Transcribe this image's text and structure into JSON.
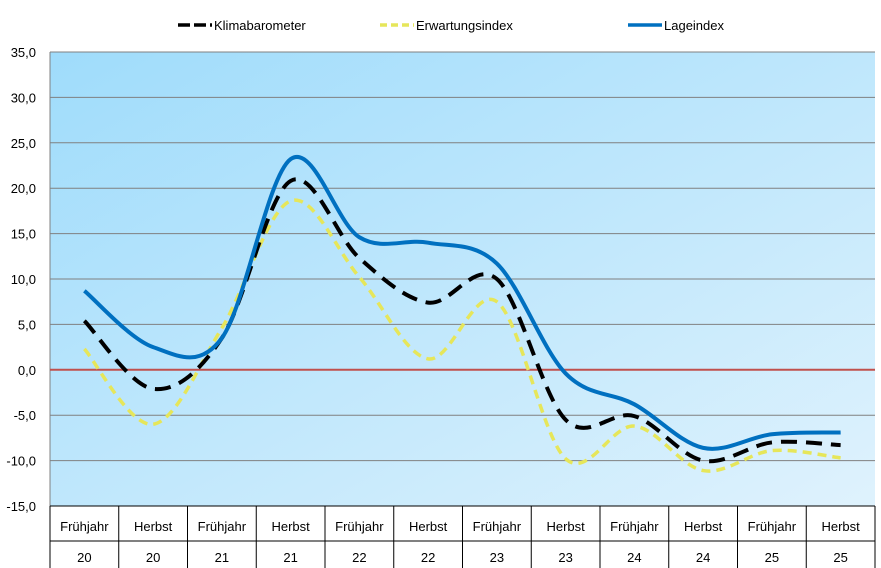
{
  "chart_data": {
    "type": "line",
    "title": "",
    "xlabel": "",
    "ylabel": "",
    "ylim": [
      -15,
      35
    ],
    "yticks": [
      "35,0",
      "30,0",
      "25,0",
      "20,0",
      "15,0",
      "10,0",
      "5,0",
      "0,0",
      "-5,0",
      "-10,0",
      "-15,0"
    ],
    "ytick_values": [
      35,
      30,
      25,
      20,
      15,
      10,
      5,
      0,
      -5,
      -10,
      -15
    ],
    "grid": true,
    "legend": "top",
    "categories": [
      [
        "Frühjahr",
        "20"
      ],
      [
        "Herbst",
        "20"
      ],
      [
        "Frühjahr",
        "21"
      ],
      [
        "Herbst",
        "21"
      ],
      [
        "Frühjahr",
        "22"
      ],
      [
        "Herbst",
        "22"
      ],
      [
        "Frühjahr",
        "23"
      ],
      [
        "Herbst",
        "23"
      ],
      [
        "Frühjahr",
        "24"
      ],
      [
        "Herbst",
        "24"
      ],
      [
        "Frühjahr",
        "25"
      ],
      [
        "Herbst",
        "25"
      ]
    ],
    "zero_line_color": "#c0504d",
    "series": [
      {
        "name": "Klimabarometer",
        "color": "#000000",
        "style": "dashed",
        "values": [
          5.4,
          -2.1,
          3.5,
          20.8,
          12.3,
          7.4,
          10.0,
          -5.5,
          -5.1,
          -10.0,
          -8.0,
          -8.3
        ]
      },
      {
        "name": "Erwartungsindex",
        "color": "#e6e65a",
        "style": "dashed",
        "values": [
          2.3,
          -6.0,
          4.6,
          18.6,
          10.2,
          1.2,
          7.5,
          -9.8,
          -6.2,
          -11.1,
          -8.9,
          -9.7
        ]
      },
      {
        "name": "Lageindex",
        "color": "#0070c0",
        "style": "solid",
        "values": [
          8.7,
          2.5,
          3.5,
          23.2,
          14.6,
          14.0,
          11.7,
          -0.4,
          -3.8,
          -8.6,
          -7.1,
          -6.9
        ]
      }
    ]
  }
}
